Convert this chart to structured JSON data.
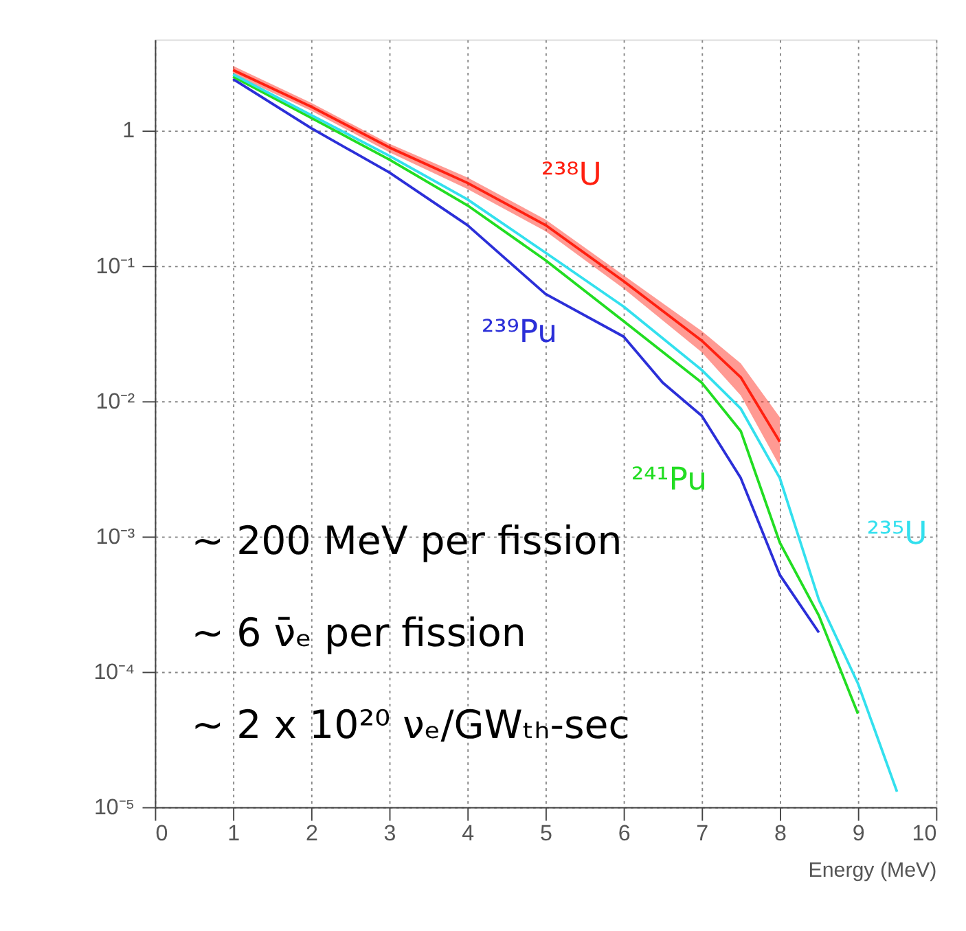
{
  "chart_data": {
    "type": "line",
    "xlabel": "Energy (MeV)",
    "log": "y",
    "grid": true,
    "line_style": "solid",
    "marker": "none",
    "xlim": [
      0,
      10
    ],
    "xticks": [
      0,
      1,
      2,
      3,
      4,
      5,
      6,
      7,
      8,
      9,
      10
    ],
    "ylim": [
      1e-05,
      4.7
    ],
    "yticks": [
      {
        "value": 1e-05,
        "label": "10⁻⁵"
      },
      {
        "value": 0.0001,
        "label": "10⁻⁴"
      },
      {
        "value": 0.001,
        "label": "10⁻³"
      },
      {
        "value": 0.01,
        "label": "10⁻²"
      },
      {
        "value": 0.1,
        "label": "10⁻¹"
      },
      1
    ],
    "series": [
      {
        "name": "²³⁸U",
        "color": "#ff2010",
        "x": [
          1,
          2,
          3,
          4,
          5,
          6,
          7,
          7.5,
          8
        ],
        "values": [
          2.8,
          1.5,
          0.75,
          0.41,
          0.2,
          0.077,
          0.028,
          0.015,
          0.005
        ],
        "lower": [
          2.6,
          1.4,
          0.69,
          0.37,
          0.18,
          0.068,
          0.023,
          0.011,
          0.0033
        ],
        "upper": [
          3.0,
          1.6,
          0.8,
          0.45,
          0.22,
          0.085,
          0.033,
          0.019,
          0.0076
        ]
      },
      {
        "name": "²³⁹Pu",
        "color": "#2b2fd8",
        "x": [
          1,
          2,
          3,
          4,
          5,
          6,
          6.5,
          7,
          7.5,
          8,
          8.5
        ],
        "values": [
          2.4,
          1.04,
          0.49,
          0.2,
          0.062,
          0.03,
          0.0137,
          0.0078,
          0.0027,
          0.00052,
          0.000195
        ]
      },
      {
        "name": "²⁴¹Pu",
        "color": "#22dd22",
        "x": [
          1,
          2,
          3,
          4,
          5,
          6,
          7,
          7.5,
          8,
          8.5,
          9
        ],
        "values": [
          2.5,
          1.24,
          0.61,
          0.28,
          0.11,
          0.039,
          0.0137,
          0.006,
          0.0009,
          0.00026,
          4.9e-05
        ]
      },
      {
        "name": "²³⁵U",
        "color": "#33e0ee",
        "x": [
          1,
          2,
          3,
          4,
          5,
          6,
          7,
          7.5,
          8,
          8.5,
          9,
          9.5
        ],
        "values": [
          2.6,
          1.3,
          0.65,
          0.31,
          0.125,
          0.05,
          0.017,
          0.0088,
          0.0027,
          0.00034,
          8.2e-05,
          1.3e-05
        ]
      }
    ],
    "annotations": [
      "~ 200 MeV per fission",
      "~ 6 ν̄ₑ per fission",
      "~ 2 x 10²⁰ νₑ/GWₜₕ-sec"
    ]
  }
}
